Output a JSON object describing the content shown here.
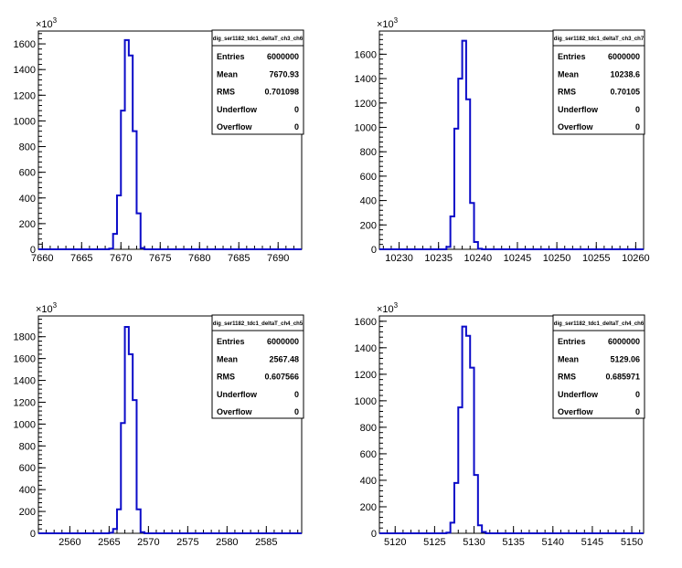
{
  "chart_data": [
    {
      "type": "histogram",
      "stats_title": "dig_ser1182_tdc1_deltaT_ch3_ch6",
      "stats": [
        {
          "label": "Entries",
          "value": "6000000"
        },
        {
          "label": "Mean",
          "value": "7670.93"
        },
        {
          "label": "RMS",
          "value": "0.701098"
        },
        {
          "label": "Underflow",
          "value": "0"
        },
        {
          "label": "Overflow",
          "value": "0"
        }
      ],
      "multiplier_label": "×10",
      "multiplier_exp": "3",
      "xlim": [
        7659.5,
        7693.0
      ],
      "ylim": [
        0,
        1700
      ],
      "xticks": [
        7660,
        7665,
        7670,
        7675,
        7680,
        7685,
        7690
      ],
      "yticks": [
        0,
        200,
        400,
        600,
        800,
        1000,
        1200,
        1400,
        1600
      ],
      "bin_width": 0.5,
      "bins_x": [
        7668.5,
        7669.0,
        7669.5,
        7670.0,
        7670.5,
        7671.0,
        7671.5,
        7672.0,
        7672.5
      ],
      "bins_y": [
        5,
        120,
        420,
        1080,
        1630,
        1510,
        920,
        280,
        10
      ]
    },
    {
      "type": "histogram",
      "stats_title": "dig_ser1182_tdc1_deltaT_ch3_ch7",
      "stats": [
        {
          "label": "Entries",
          "value": "6000000"
        },
        {
          "label": "Mean",
          "value": "10238.6"
        },
        {
          "label": "RMS",
          "value": "0.70105"
        },
        {
          "label": "Underflow",
          "value": "0"
        },
        {
          "label": "Overflow",
          "value": "0"
        }
      ],
      "multiplier_label": "×10",
      "multiplier_exp": "3",
      "xlim": [
        10227.5,
        10261.0
      ],
      "ylim": [
        0,
        1790
      ],
      "xticks": [
        10230,
        10235,
        10240,
        10245,
        10250,
        10255,
        10260
      ],
      "yticks": [
        0,
        200,
        400,
        600,
        800,
        1000,
        1200,
        1400,
        1600
      ],
      "bin_width": 0.5,
      "bins_x": [
        10236.0,
        10236.5,
        10237.0,
        10237.5,
        10238.0,
        10238.5,
        10239.0,
        10239.5,
        10240.0
      ],
      "bins_y": [
        20,
        270,
        990,
        1400,
        1710,
        1230,
        380,
        60,
        5
      ]
    },
    {
      "type": "histogram",
      "stats_title": "dig_ser1182_tdc1_deltaT_ch4_ch5",
      "stats": [
        {
          "label": "Entries",
          "value": "6000000"
        },
        {
          "label": "Mean",
          "value": "2567.48"
        },
        {
          "label": "RMS",
          "value": "0.607566"
        },
        {
          "label": "Underflow",
          "value": "0"
        },
        {
          "label": "Overflow",
          "value": "0"
        }
      ],
      "multiplier_label": "×10",
      "multiplier_exp": "3",
      "xlim": [
        2556.0,
        2589.5
      ],
      "ylim": [
        0,
        1990
      ],
      "xticks": [
        2560,
        2565,
        2570,
        2575,
        2580,
        2585
      ],
      "yticks": [
        0,
        200,
        400,
        600,
        800,
        1000,
        1200,
        1400,
        1600,
        1800
      ],
      "bin_width": 0.5,
      "bins_x": [
        2565.0,
        2565.5,
        2566.0,
        2566.5,
        2567.0,
        2567.5,
        2568.0,
        2568.5,
        2569.0
      ],
      "bins_y": [
        5,
        40,
        220,
        1010,
        1890,
        1640,
        1220,
        220,
        10
      ]
    },
    {
      "type": "histogram",
      "stats_title": "dig_ser1182_tdc1_deltaT_ch4_ch6",
      "stats": [
        {
          "label": "Entries",
          "value": "6000000"
        },
        {
          "label": "Mean",
          "value": "5129.06"
        },
        {
          "label": "RMS",
          "value": "0.685971"
        },
        {
          "label": "Underflow",
          "value": "0"
        },
        {
          "label": "Overflow",
          "value": "0"
        }
      ],
      "multiplier_label": "×10",
      "multiplier_exp": "3",
      "xlim": [
        5118.0,
        5151.5
      ],
      "ylim": [
        0,
        1640
      ],
      "xticks": [
        5120,
        5125,
        5130,
        5135,
        5140,
        5145,
        5150
      ],
      "yticks": [
        0,
        200,
        400,
        600,
        800,
        1000,
        1200,
        1400,
        1600
      ],
      "bin_width": 0.5,
      "bins_x": [
        5126.5,
        5127.0,
        5127.5,
        5128.0,
        5128.5,
        5129.0,
        5129.5,
        5130.0,
        5130.5,
        5131.0
      ],
      "bins_y": [
        5,
        80,
        380,
        950,
        1560,
        1490,
        1250,
        440,
        60,
        10
      ]
    }
  ],
  "colors": {
    "histogram_line": "#0b0bc8",
    "axis": "#000000",
    "background": "#ffffff"
  }
}
